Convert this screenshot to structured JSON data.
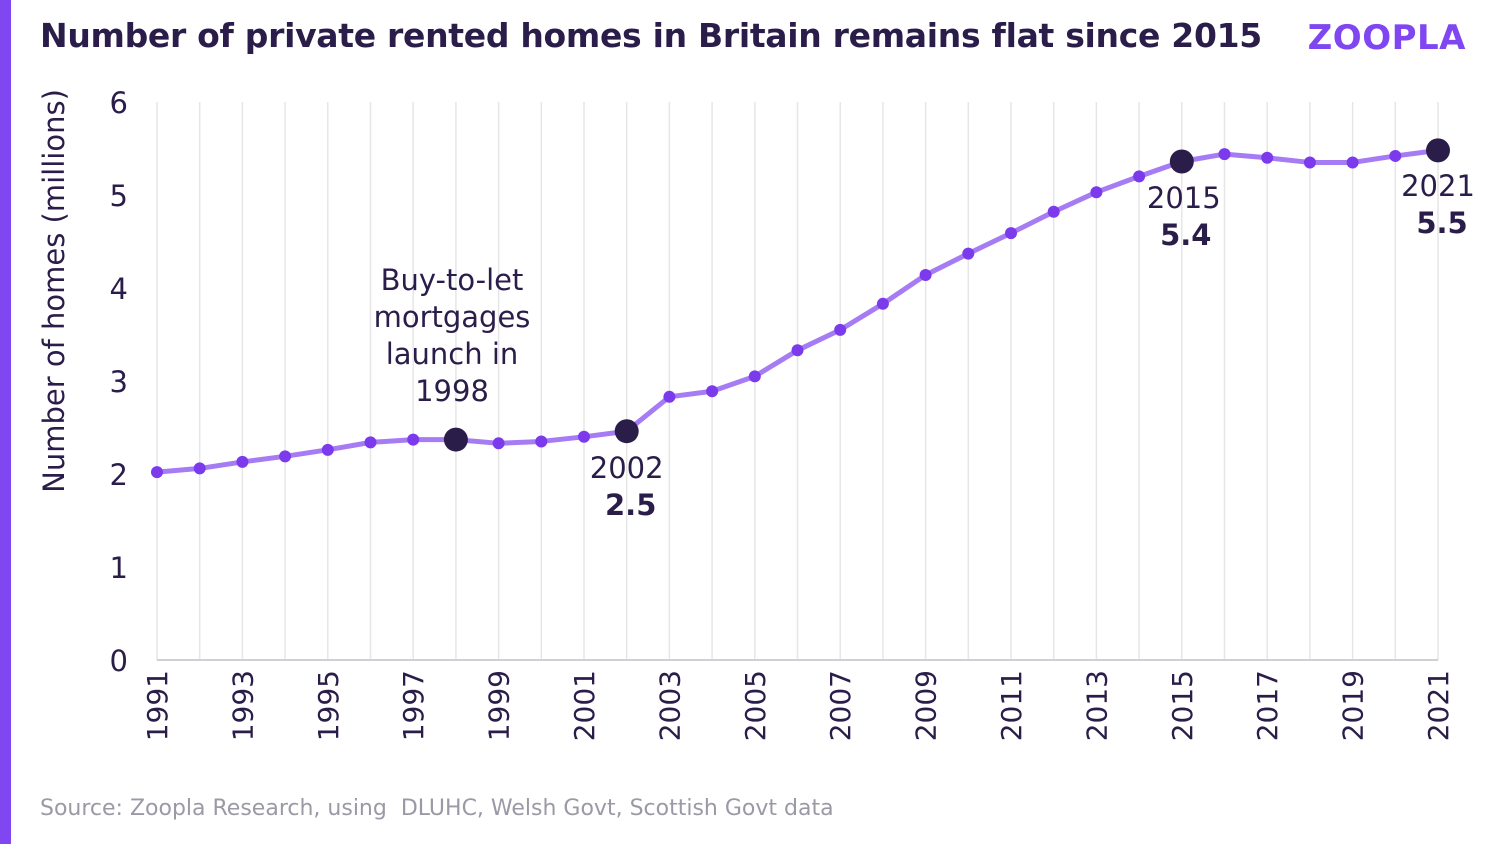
{
  "header": {
    "title": "Number of private rented homes in Britain remains flat since 2015",
    "logo": "ZOOPLA"
  },
  "footer": {
    "source": "Source: Zoopla Research, using  DLUHC, Welsh Govt, Scottish Govt data"
  },
  "colors": {
    "accent": "#8046f1",
    "line": "#a67cf4",
    "point": "#7c3aed",
    "highlight": "#2b1d4a",
    "grid": "#e6e6e6",
    "text": "#2b1d4a"
  },
  "chart_data": {
    "type": "line",
    "title": "Number of private rented homes in Britain remains flat since 2015",
    "xlabel": "",
    "ylabel": "Number of homes (millions)",
    "ylim": [
      0,
      6
    ],
    "yticks": [
      "0",
      "1",
      "2",
      "3",
      "4",
      "5",
      "6"
    ],
    "xticks": [
      "1991",
      "1993",
      "1995",
      "1997",
      "1999",
      "2001",
      "2003",
      "2005",
      "2007",
      "2009",
      "2011",
      "2013",
      "2015",
      "2017",
      "2019",
      "2021"
    ],
    "grid": "vertical",
    "x": [
      1991,
      1992,
      1993,
      1994,
      1995,
      1996,
      1997,
      1998,
      1999,
      2000,
      2001,
      2002,
      2003,
      2004,
      2005,
      2006,
      2007,
      2008,
      2009,
      2010,
      2011,
      2012,
      2013,
      2014,
      2015,
      2016,
      2017,
      2018,
      2019,
      2020,
      2021
    ],
    "series": [
      {
        "name": "",
        "values": [
          2.02,
          2.06,
          2.13,
          2.19,
          2.26,
          2.34,
          2.37,
          2.37,
          2.33,
          2.35,
          2.4,
          2.46,
          2.83,
          2.89,
          3.05,
          3.33,
          3.55,
          3.83,
          4.14,
          4.37,
          4.59,
          4.82,
          5.03,
          5.2,
          5.36,
          5.44,
          5.4,
          5.35,
          5.35,
          5.42,
          5.48
        ]
      }
    ],
    "highlights": [
      1998,
      2002,
      2015,
      2021
    ],
    "annotations": [
      {
        "year": "",
        "value": "",
        "text": "Buy-to-let mortgages launch in 1998",
        "lines": [
          "Buy-to-let",
          "mortgages",
          "launch in",
          "1998"
        ]
      },
      {
        "year": "2002",
        "value": "2.5"
      },
      {
        "year": "2015",
        "value": "5.4"
      },
      {
        "year": "2021",
        "value": "5.5"
      }
    ]
  }
}
